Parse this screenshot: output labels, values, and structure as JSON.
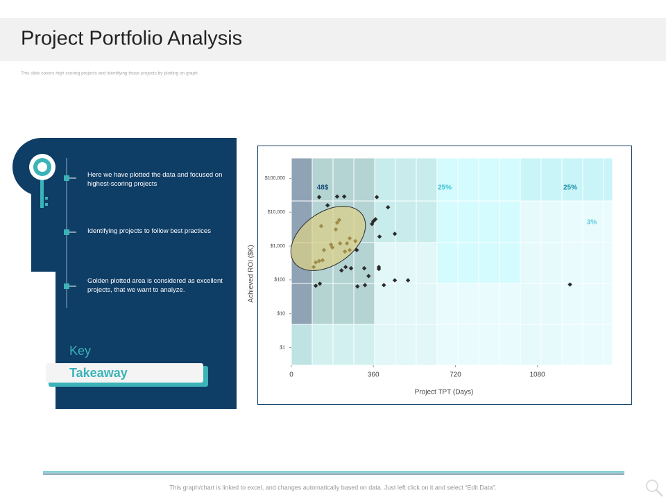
{
  "header": {
    "title": "Project Portfolio Analysis",
    "subtitle": "This slide covers high scoring projects and identifying those projects by plotting on graph."
  },
  "key_points": [
    "Here we have plotted the data and focused on highest-scoring projects",
    "Identifying projects to follow best practices",
    "Golden plotted area is considered as excellent projects, that we want to analyze."
  ],
  "key_takeaway": {
    "key": "Key",
    "takeaway": "Takeaway"
  },
  "footer": "This graph/chart is linked to excel, and changes automatically based on data. Just left click on it and select “Edit Data”.",
  "chart_data": {
    "type": "scatter",
    "xlabel": "Project TPT (Days)",
    "ylabel": "Achieved ROI ($K)",
    "xlim": [
      0,
      1410
    ],
    "xticks": [
      0,
      360,
      720,
      1080
    ],
    "ylim": [
      0.3,
      400000
    ],
    "log_y": true,
    "grid": false,
    "yticks": [
      {
        "value": 1,
        "label": "$1"
      },
      {
        "value": 10,
        "label": "$10"
      },
      {
        "value": 100,
        "label": "$100"
      },
      {
        "value": 1000,
        "label": "$1,000"
      },
      {
        "value": 10000,
        "label": "$10,000"
      },
      {
        "value": 100000,
        "label": "$100,000"
      }
    ],
    "annotations": [
      "48$",
      "25%",
      "25%",
      "3%"
    ],
    "series": [
      {
        "color": "#a08c4a",
        "x": [
          131,
          210,
          201,
          195,
          256,
          281,
          174,
          244,
          214,
          143,
          180,
          235,
          256,
          122,
          107,
          137,
          98
        ],
        "values": [
          3900,
          5900,
          4900,
          3100,
          1700,
          1400,
          1100,
          1200,
          1200,
          760,
          910,
          690,
          760,
          360,
          330,
          380,
          240
        ]
      },
      {
        "color": "#2b2b2b",
        "x": [
          122,
          201,
          232,
          375,
          159,
          424,
          369,
          360,
          354,
          454,
          387,
          287,
          238,
          220,
          262,
          320,
          384,
          384,
          339,
          454,
          512,
          125,
          107,
          290,
          323,
          406,
          1223
        ],
        "values": [
          28000,
          29000,
          29000,
          28000,
          16000,
          14000,
          6200,
          5400,
          4500,
          2300,
          1900,
          760,
          240,
          190,
          220,
          220,
          240,
          210,
          130,
          97,
          97,
          77,
          67,
          64,
          70,
          70,
          73
        ]
      }
    ]
  }
}
